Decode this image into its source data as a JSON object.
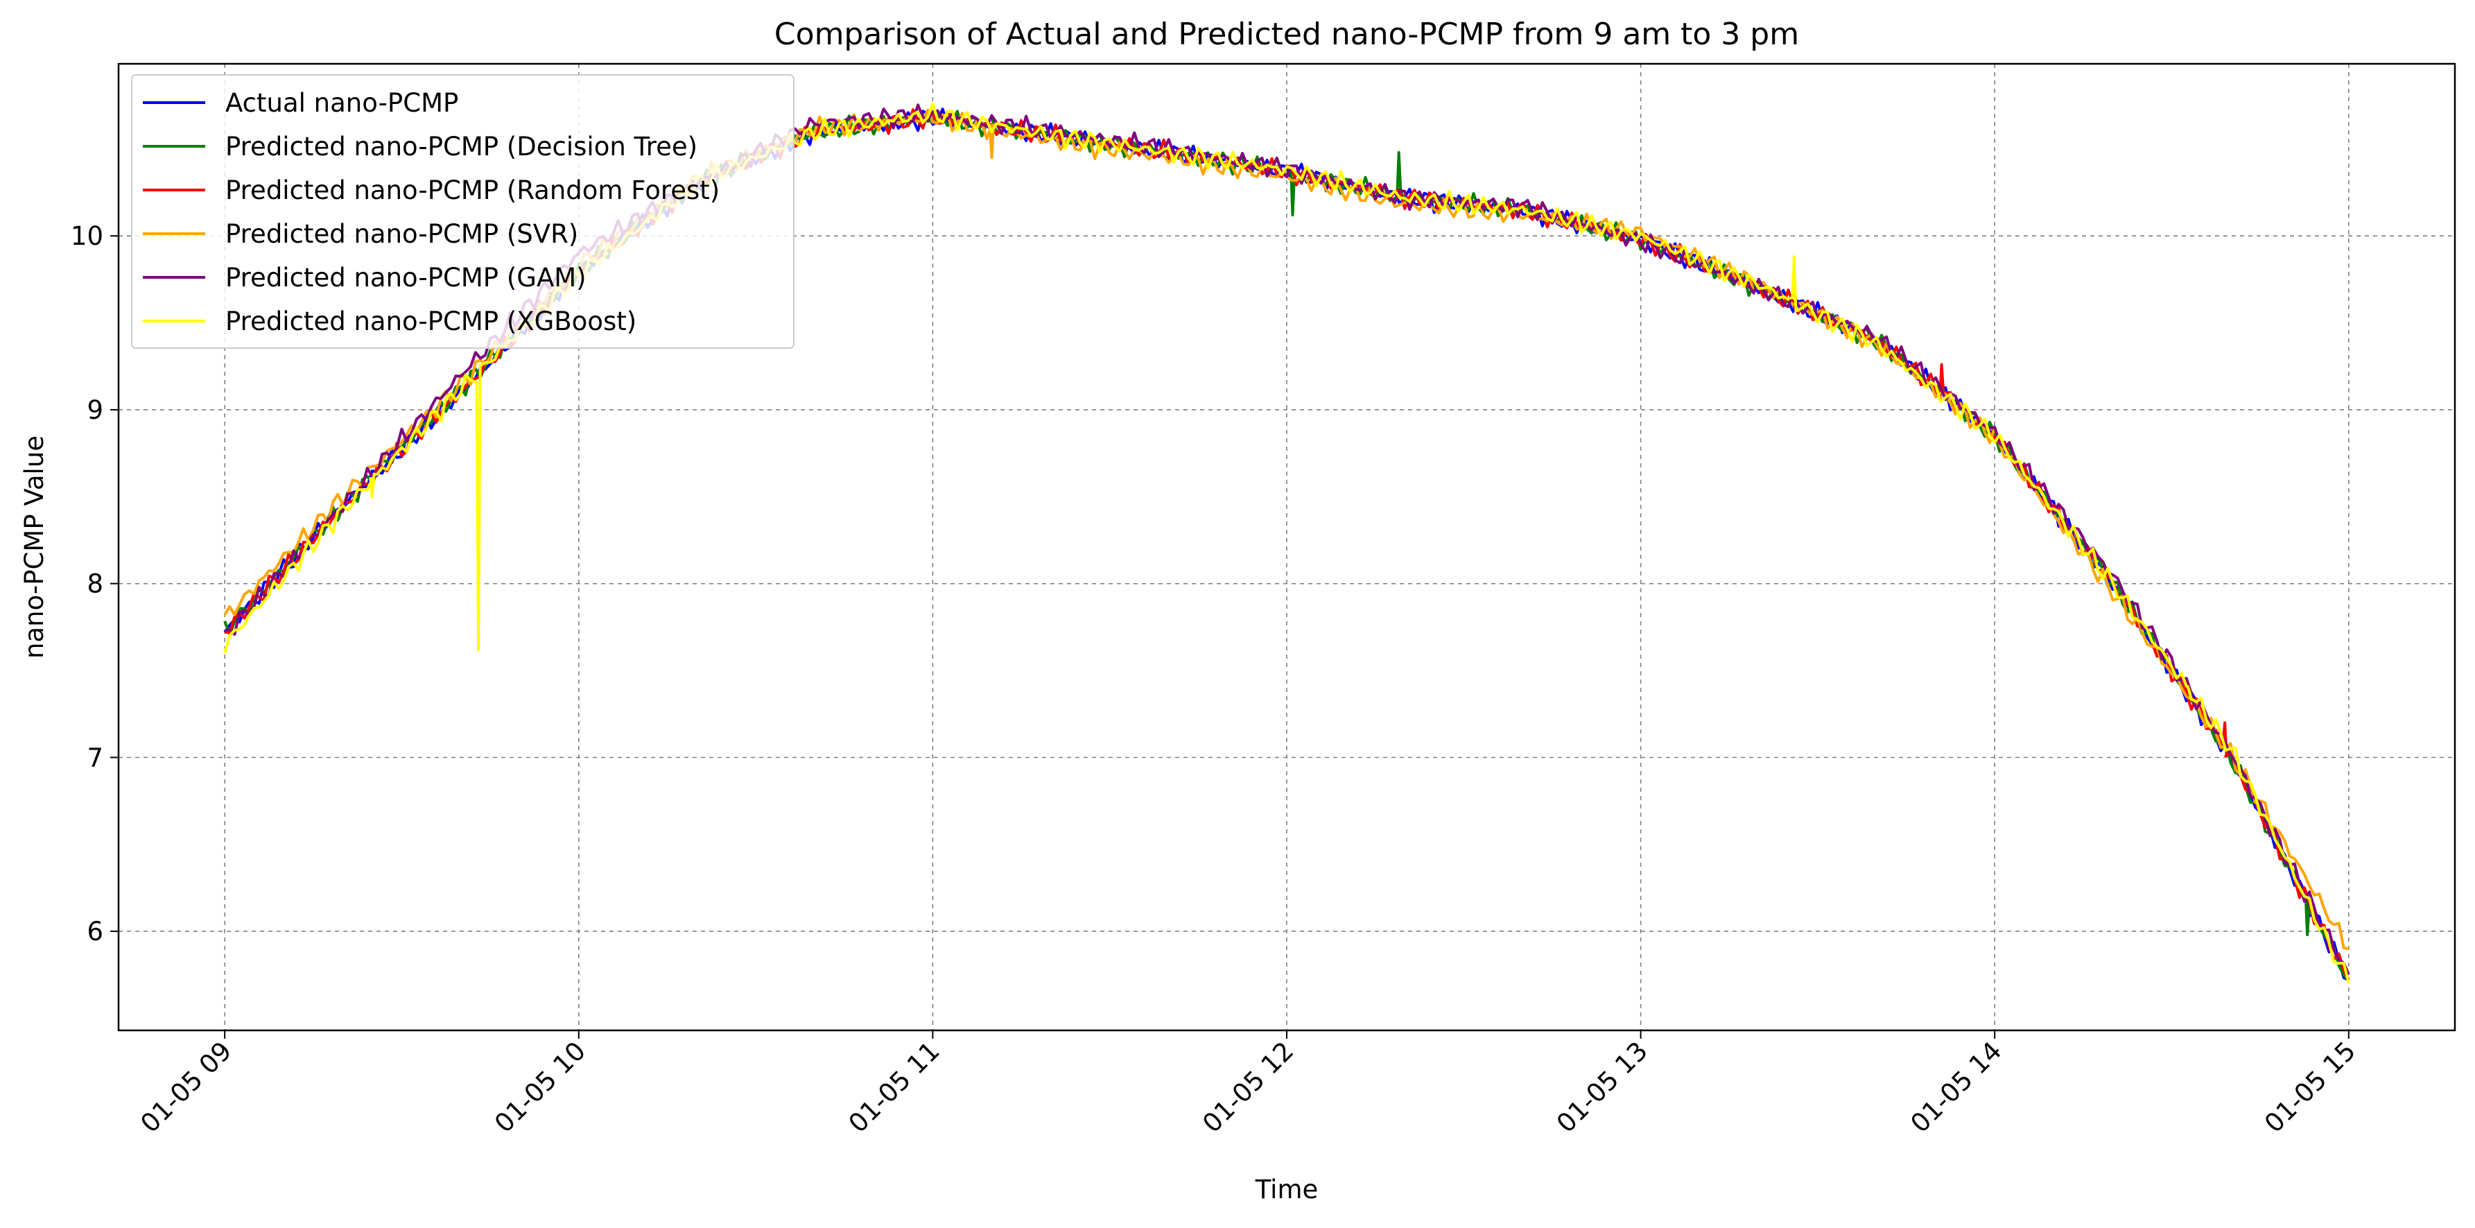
{
  "chart_data": {
    "type": "line",
    "title": "Comparison of Actual and Predicted nano-PCMP from 9 am to 3 pm",
    "xlabel": "Time",
    "ylabel": "nano-PCMP Value",
    "x_ticks": [
      "01-05 09",
      "01-05 10",
      "01-05 11",
      "01-05 12",
      "01-05 13",
      "01-05 14",
      "01-05 15"
    ],
    "y_ticks": [
      "6",
      "7",
      "8",
      "9",
      "10"
    ],
    "xlim": [
      "01-05 08:42",
      "01-05 15:18"
    ],
    "ylim": [
      5.43,
      10.99
    ],
    "grid": true,
    "grid_style": "dashed",
    "legend_position": "upper-left",
    "x": [
      "09:00",
      "09:20",
      "09:40",
      "10:00",
      "10:20",
      "10:40",
      "11:00",
      "11:20",
      "11:40",
      "12:00",
      "12:20",
      "12:40",
      "13:00",
      "13:20",
      "13:40",
      "14:00",
      "14:20",
      "14:40",
      "15:00"
    ],
    "series": [
      {
        "name": "Actual nano-PCMP",
        "color": "#0000ff",
        "values": [
          7.72,
          8.45,
          9.1,
          9.8,
          10.3,
          10.6,
          10.68,
          10.58,
          10.48,
          10.37,
          10.22,
          10.15,
          9.98,
          9.7,
          9.4,
          8.85,
          8.0,
          7.0,
          5.72
        ]
      },
      {
        "name": "Predicted nano-PCMP (Decision Tree)",
        "color": "#008000",
        "values": [
          7.73,
          8.45,
          9.12,
          9.8,
          10.3,
          10.6,
          10.68,
          10.58,
          10.48,
          10.37,
          10.22,
          10.15,
          9.98,
          9.7,
          9.4,
          8.85,
          8.0,
          7.0,
          5.72
        ],
        "spikes": [
          {
            "x": "12:01",
            "y": 10.12
          },
          {
            "x": "12:19",
            "y": 10.48
          },
          {
            "x": "14:53",
            "y": 5.98
          }
        ]
      },
      {
        "name": "Predicted nano-PCMP (Random Forest)",
        "color": "#ff0000",
        "values": [
          7.72,
          8.44,
          9.1,
          9.8,
          10.3,
          10.6,
          10.68,
          10.58,
          10.48,
          10.37,
          10.22,
          10.15,
          9.98,
          9.7,
          9.4,
          8.85,
          8.0,
          7.0,
          5.72
        ],
        "spikes": [
          {
            "x": "13:51",
            "y": 9.26
          },
          {
            "x": "14:39",
            "y": 7.2
          }
        ]
      },
      {
        "name": "Predicted nano-PCMP (SVR)",
        "color": "#ffa500",
        "values": [
          7.8,
          8.5,
          9.15,
          9.83,
          10.32,
          10.62,
          10.68,
          10.55,
          10.45,
          10.34,
          10.18,
          10.12,
          10.02,
          9.72,
          9.38,
          8.84,
          7.95,
          7.02,
          5.9
        ],
        "spikes": [
          {
            "x": "11:10",
            "y": 10.45
          }
        ]
      },
      {
        "name": "Predicted nano-PCMP (GAM)",
        "color": "#800080",
        "values": [
          7.7,
          8.45,
          9.2,
          9.9,
          10.3,
          10.65,
          10.7,
          10.6,
          10.5,
          10.38,
          10.22,
          10.17,
          9.97,
          9.7,
          9.42,
          8.87,
          8.05,
          7.03,
          5.75
        ]
      },
      {
        "name": "Predicted nano-PCMP (XGBoost)",
        "color": "#ffff00",
        "values": [
          7.65,
          8.42,
          9.12,
          9.78,
          10.3,
          10.6,
          10.7,
          10.58,
          10.48,
          10.38,
          10.22,
          10.15,
          10.0,
          9.72,
          9.38,
          8.85,
          8.0,
          7.05,
          5.7
        ],
        "spikes": [
          {
            "x": "09:25",
            "y": 8.5
          },
          {
            "x": "09:43",
            "y": 7.62
          },
          {
            "x": "13:26",
            "y": 9.88
          },
          {
            "x": "14:33",
            "y": 7.38
          }
        ]
      }
    ]
  }
}
